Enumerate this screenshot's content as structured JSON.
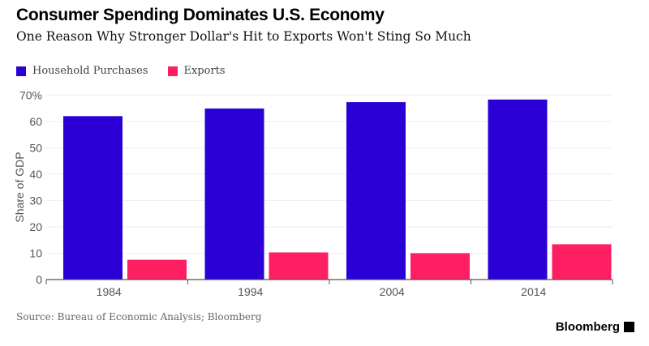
{
  "chart_data": {
    "type": "bar",
    "title": "Consumer Spending Dominates U.S. Economy",
    "subtitle": "One Reason Why Stronger Dollar's Hit to Exports Won't Sting So Much",
    "categories": [
      "1984",
      "1994",
      "2004",
      "2014"
    ],
    "series": [
      {
        "name": "Household Purchases",
        "color": "#2a00d6",
        "values": [
          62.0,
          64.9,
          67.3,
          68.3
        ]
      },
      {
        "name": "Exports",
        "color": "#fd1f62",
        "values": [
          7.5,
          10.3,
          10.0,
          13.4
        ]
      }
    ],
    "xlabel": "",
    "ylabel": "Share of GDP",
    "ylim": [
      0,
      70
    ],
    "yticks": [
      "0",
      "10",
      "20",
      "30",
      "40",
      "50",
      "60",
      "70%"
    ],
    "grid": true,
    "legend": "top-left",
    "source": "Source: Bureau of Economic Analysis; Bloomberg",
    "brand": "Bloomberg"
  }
}
